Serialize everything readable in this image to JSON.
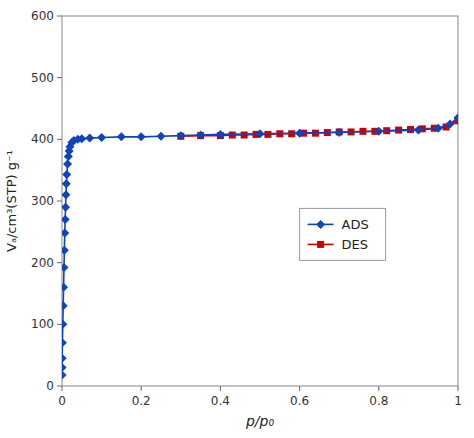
{
  "chart_data": {
    "type": "line",
    "xlabel": "p/p₀",
    "ylabel": "Vₐ/cm³(STP) g⁻¹",
    "xlim": [
      0,
      1.0
    ],
    "ylim": [
      0,
      600
    ],
    "xticks": [
      0,
      0.2,
      0.4,
      0.6,
      0.8,
      1
    ],
    "yticks": [
      0,
      100,
      200,
      300,
      400,
      500,
      600
    ],
    "grid": false,
    "legend": "right",
    "series": [
      {
        "name": "ADS",
        "color": "#1044bb",
        "marker": "diamond",
        "x": [
          0.0001,
          0.0003,
          0.0005,
          0.001,
          0.002,
          0.003,
          0.004,
          0.005,
          0.006,
          0.007,
          0.008,
          0.009,
          0.01,
          0.011,
          0.012,
          0.014,
          0.016,
          0.018,
          0.02,
          0.025,
          0.03,
          0.04,
          0.05,
          0.07,
          0.1,
          0.15,
          0.2,
          0.25,
          0.3,
          0.35,
          0.4,
          0.5,
          0.6,
          0.7,
          0.8,
          0.9,
          0.95,
          0.98,
          1.0
        ],
        "values": [
          18,
          30,
          45,
          70,
          100,
          130,
          160,
          192,
          220,
          248,
          270,
          290,
          310,
          328,
          343,
          360,
          372,
          381,
          388,
          395,
          398,
          400,
          401,
          402,
          403,
          404,
          404,
          405,
          406,
          407,
          408,
          409,
          410,
          411,
          413,
          415,
          418,
          425,
          435
        ]
      },
      {
        "name": "DES",
        "color": "#cc0000",
        "marker": "square",
        "x": [
          0.3,
          0.35,
          0.4,
          0.43,
          0.46,
          0.49,
          0.52,
          0.55,
          0.58,
          0.61,
          0.64,
          0.67,
          0.7,
          0.73,
          0.76,
          0.79,
          0.82,
          0.85,
          0.88,
          0.91,
          0.94,
          0.97,
          1.0
        ],
        "values": [
          405,
          406,
          406,
          407,
          407,
          408,
          408,
          409,
          409,
          410,
          410,
          411,
          412,
          412,
          413,
          413,
          414,
          415,
          416,
          417,
          418,
          420,
          430
        ]
      }
    ]
  }
}
